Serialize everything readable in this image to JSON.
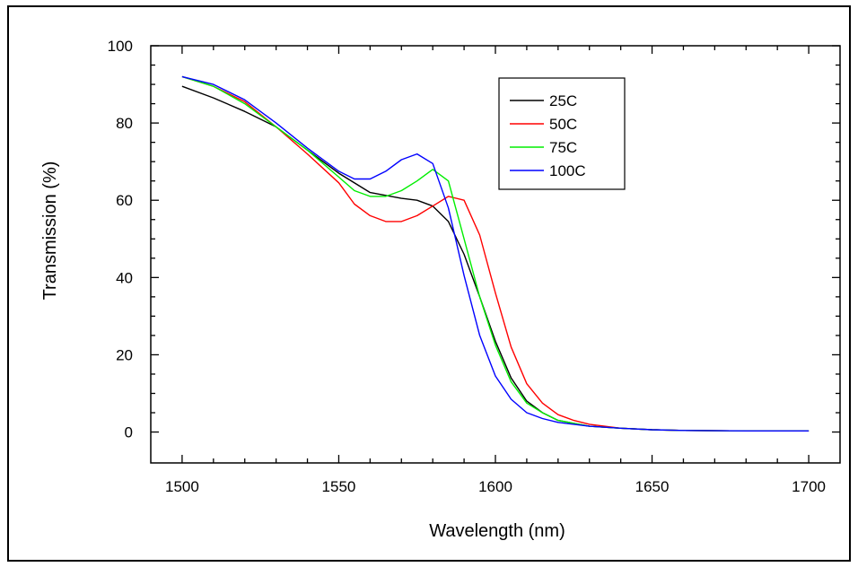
{
  "chart_data": {
    "type": "line",
    "title": "",
    "xlabel": "Wavelength (nm)",
    "ylabel": "Transmission (%)",
    "xlim": [
      1490,
      1710
    ],
    "ylim": [
      -8,
      100
    ],
    "xticks": [
      1500,
      1550,
      1600,
      1650,
      1700
    ],
    "yticks": [
      0,
      20,
      40,
      60,
      80,
      100
    ],
    "grid": false,
    "legend_position": "top-center",
    "series": [
      {
        "name": "25C",
        "color": "#000000",
        "x": [
          1500,
          1510,
          1520,
          1530,
          1540,
          1550,
          1560,
          1570,
          1575,
          1580,
          1585,
          1590,
          1595,
          1600,
          1605,
          1610,
          1615,
          1620,
          1630,
          1640,
          1650,
          1660,
          1680,
          1700
        ],
        "y": [
          89.5,
          86.5,
          83,
          79,
          73,
          67,
          62,
          60.5,
          60,
          58.5,
          54.5,
          46,
          35,
          23.5,
          14,
          8,
          5,
          3,
          1.5,
          1,
          0.6,
          0.4,
          0.3,
          0.3
        ]
      },
      {
        "name": "50C",
        "color": "#ff0000",
        "x": [
          1500,
          1510,
          1520,
          1530,
          1540,
          1550,
          1555,
          1560,
          1565,
          1570,
          1575,
          1580,
          1585,
          1590,
          1595,
          1600,
          1605,
          1610,
          1615,
          1620,
          1625,
          1630,
          1640,
          1650,
          1660,
          1680,
          1700
        ],
        "y": [
          92,
          89.5,
          85.5,
          79,
          72,
          64.5,
          59,
          56,
          54.5,
          54.5,
          56,
          58.5,
          61,
          60,
          51,
          36,
          22,
          12.5,
          7.5,
          4.5,
          3,
          2,
          1,
          0.6,
          0.4,
          0.3,
          0.3
        ]
      },
      {
        "name": "75C",
        "color": "#00ee00",
        "x": [
          1500,
          1510,
          1520,
          1530,
          1540,
          1550,
          1555,
          1560,
          1565,
          1570,
          1575,
          1580,
          1585,
          1590,
          1595,
          1600,
          1605,
          1610,
          1615,
          1620,
          1630,
          1640,
          1650,
          1660,
          1680,
          1700
        ],
        "y": [
          92,
          89.5,
          85,
          79,
          73,
          66,
          62.5,
          61,
          61,
          62.5,
          65,
          68,
          65,
          50,
          35,
          22.5,
          13,
          7.5,
          5,
          3,
          1.5,
          1,
          0.6,
          0.4,
          0.3,
          0.3
        ]
      },
      {
        "name": "100C",
        "color": "#0000ff",
        "x": [
          1500,
          1510,
          1520,
          1530,
          1540,
          1550,
          1555,
          1560,
          1565,
          1570,
          1575,
          1580,
          1585,
          1590,
          1595,
          1600,
          1605,
          1610,
          1615,
          1620,
          1630,
          1640,
          1650,
          1660,
          1680,
          1700
        ],
        "y": [
          92,
          90,
          86,
          80,
          73.5,
          67.5,
          65.5,
          65.5,
          67.5,
          70.5,
          72,
          69.5,
          58,
          40.5,
          25,
          14.5,
          8.5,
          5,
          3.5,
          2.5,
          1.5,
          1,
          0.6,
          0.4,
          0.3,
          0.3
        ]
      }
    ]
  }
}
